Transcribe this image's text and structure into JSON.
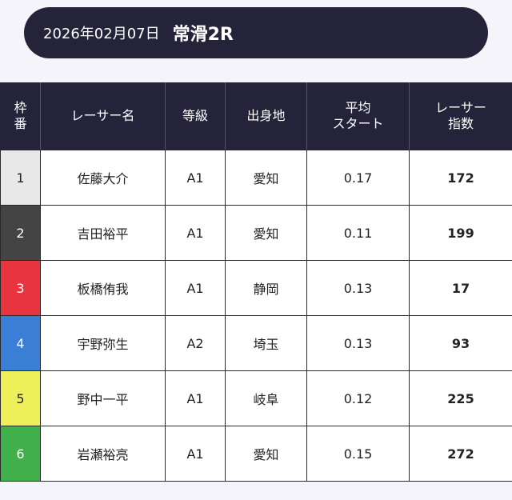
{
  "header": {
    "date": "2026年02月07日",
    "race": "常滑2R"
  },
  "table": {
    "headers": {
      "waku": [
        "枠",
        "番"
      ],
      "name": "レーサー名",
      "class": "等級",
      "home": "出身地",
      "start": [
        "平均",
        "スタート"
      ],
      "index": [
        "レーサー",
        "指数"
      ]
    },
    "rows": [
      {
        "waku": "1",
        "waku_bg": "#e8e8e8",
        "waku_fg": "#222222",
        "name": "佐藤大介",
        "class": "A1",
        "home": "愛知",
        "start": "0.17",
        "index": "172"
      },
      {
        "waku": "2",
        "waku_bg": "#444444",
        "waku_fg": "#ffffff",
        "name": "吉田裕平",
        "class": "A1",
        "home": "愛知",
        "start": "0.11",
        "index": "199"
      },
      {
        "waku": "3",
        "waku_bg": "#e8343f",
        "waku_fg": "#ffffff",
        "name": "板橋侑我",
        "class": "A1",
        "home": "静岡",
        "start": "0.13",
        "index": "17"
      },
      {
        "waku": "4",
        "waku_bg": "#3a7fd5",
        "waku_fg": "#ffffff",
        "name": "宇野弥生",
        "class": "A2",
        "home": "埼玉",
        "start": "0.13",
        "index": "93"
      },
      {
        "waku": "5",
        "waku_bg": "#eef05a",
        "waku_fg": "#222222",
        "name": "野中一平",
        "class": "A1",
        "home": "岐阜",
        "start": "0.12",
        "index": "225"
      },
      {
        "waku": "6",
        "waku_bg": "#3fb04a",
        "waku_fg": "#ffffff",
        "name": "岩瀬裕亮",
        "class": "A1",
        "home": "愛知",
        "start": "0.15",
        "index": "272"
      }
    ]
  }
}
